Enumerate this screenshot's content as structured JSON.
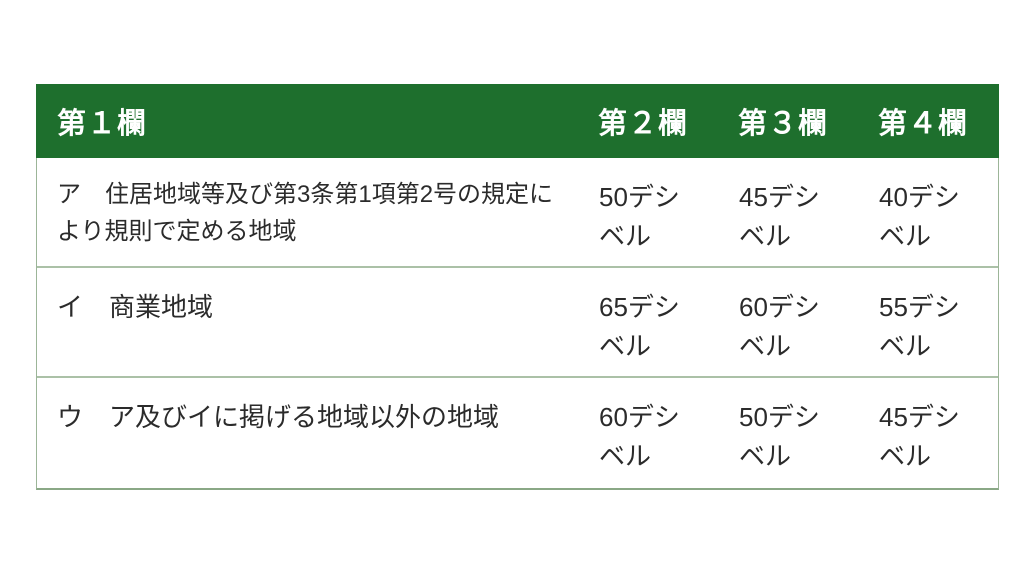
{
  "table": {
    "title_semantic": "noise-limit-table",
    "colors": {
      "header_background": "#1e6f2d",
      "header_text": "#ffffff",
      "body_text": "#2b2b2b",
      "outer_border": "#9cb598",
      "bottom_border": "#8aa886",
      "row_divider": "#abc1a7",
      "page_background": "#ffffff"
    },
    "columns": [
      {
        "label": "第１欄"
      },
      {
        "label": "第２欄"
      },
      {
        "label": "第３欄"
      },
      {
        "label": "第４欄"
      }
    ],
    "rows": [
      {
        "area": "ア　住居地域等及び第3条第1項第2号の規定により規則で定める地域",
        "col2": "50デシベル",
        "col3": "45デシベル",
        "col4": "40デシベル"
      },
      {
        "area": "イ　商業地域",
        "col2": "65デシベル",
        "col3": "60デシベル",
        "col4": "55デシベル"
      },
      {
        "area": "ウ　ア及びイに掲げる地域以外の地域",
        "col2": "60デシベル",
        "col3": "50デシベル",
        "col4": "45デシベル"
      }
    ]
  }
}
